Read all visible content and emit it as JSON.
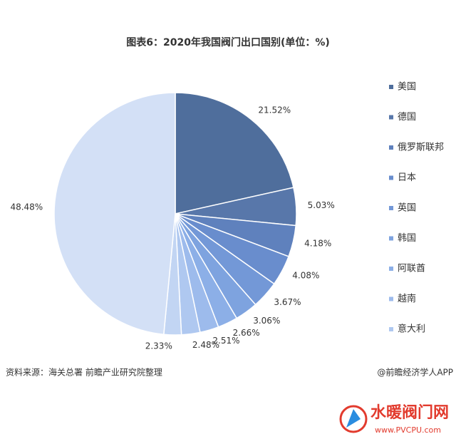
{
  "chart_data": {
    "type": "pie",
    "title": "图表6：2020年我国阀门出口国别(单位：%)",
    "categories": [
      "美国",
      "德国",
      "俄罗斯联邦",
      "日本",
      "英国",
      "韩国",
      "阿联酋",
      "越南",
      "意大利",
      null,
      null
    ],
    "values": [
      21.52,
      5.03,
      4.18,
      4.08,
      3.67,
      3.06,
      2.66,
      2.51,
      2.48,
      2.33,
      48.48
    ],
    "value_labels": [
      "21.52%",
      "5.03%",
      "4.18%",
      "4.08%",
      "3.67%",
      "3.06%",
      "2.66%",
      "2.51%",
      "2.48%",
      "2.33%",
      "48.48%"
    ],
    "colors": [
      "#4f6e9c",
      "#5877aa",
      "#5f81bd",
      "#698dcd",
      "#7398d7",
      "#7ea3df",
      "#8cafe7",
      "#9dbbec",
      "#afc8f0",
      "#c2d5f3",
      "#d3e0f6"
    ],
    "legend": "right"
  },
  "source": "资料来源：海关总署 前瞻产业研究院整理",
  "footer": "@前瞻经济学人APP",
  "watermark": {
    "name": "水暖阀门网",
    "url": "www.PVCPU.com"
  }
}
